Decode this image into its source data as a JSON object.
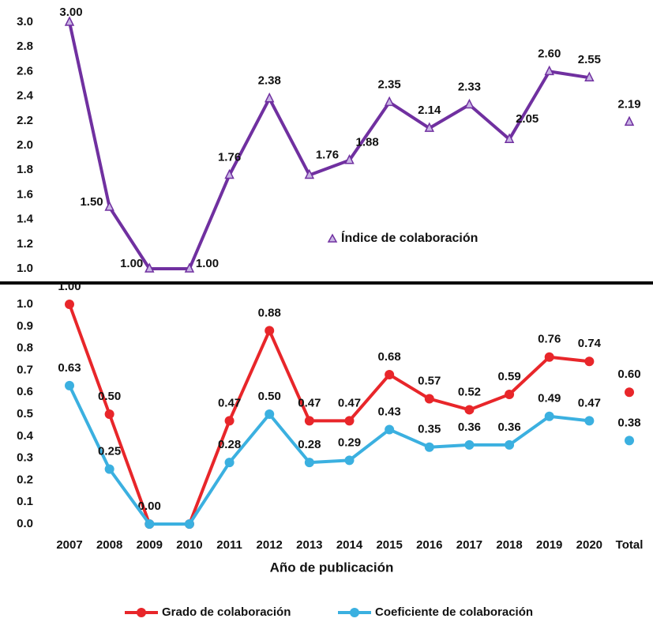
{
  "chart_data": [
    {
      "type": "line",
      "series": [
        {
          "name": "Índice de colaboración",
          "color": "#7030a0",
          "values": [
            3.0,
            1.5,
            1.0,
            1.0,
            1.76,
            2.38,
            1.76,
            1.88,
            2.35,
            2.14,
            2.33,
            2.05,
            2.6,
            2.55,
            2.19
          ],
          "value_labels": [
            "3.00",
            "1.50",
            "1.00",
            "1.00",
            "1.76",
            "2.38",
            "1.76",
            "1.88",
            "2.35",
            "2.14",
            "2.33",
            "2.05",
            "2.60",
            "2.55",
            "2.19"
          ]
        }
      ],
      "ylim": [
        1.0,
        3.0
      ],
      "yticks": [
        {
          "value": 1.0,
          "label": "1.0"
        },
        1.2,
        1.4,
        1.6,
        1.8,
        {
          "value": 2.0,
          "label": "2.0"
        },
        2.2,
        2.4,
        2.6,
        2.8,
        {
          "value": 3.0,
          "label": "3.0"
        }
      ]
    },
    {
      "type": "line",
      "x_label": "Año de publicación",
      "categories": [
        "2007",
        "2008",
        "2009",
        "2010",
        "2011",
        "2012",
        "2013",
        "2014",
        "2015",
        "2016",
        "2017",
        "2018",
        "2019",
        "2020",
        "Total"
      ],
      "series": [
        {
          "name": "Grado de colaboración",
          "color": "#e8262a",
          "values": [
            1.0,
            0.5,
            0.0,
            0.0,
            0.47,
            0.88,
            0.47,
            0.47,
            0.68,
            0.57,
            0.52,
            0.59,
            0.76,
            0.74,
            0.6
          ],
          "value_labels": [
            "1.00",
            "0.50",
            "0.00",
            null,
            "0.47",
            "0.88",
            "0.47",
            "0.47",
            "0.68",
            "0.57",
            "0.52",
            "0.59",
            "0.76",
            "0.74",
            "0.60"
          ]
        },
        {
          "name": "Coeficiente de colaboración",
          "color": "#3bb0e0",
          "values": [
            0.63,
            0.25,
            0.0,
            0.0,
            0.28,
            0.5,
            0.28,
            0.29,
            0.43,
            0.35,
            0.36,
            0.36,
            0.49,
            0.47,
            0.38
          ],
          "value_labels": [
            "0.63",
            "0.25",
            null,
            null,
            "0.28",
            "0.50",
            "0.28",
            "0.29",
            "0.43",
            "0.35",
            "0.36",
            "0.36",
            "0.49",
            "0.47",
            "0.38"
          ]
        }
      ],
      "ylim": [
        0.0,
        1.0
      ],
      "yticks": [
        {
          "value": 0.0,
          "label": "0.0"
        },
        0.1,
        0.2,
        0.3,
        0.4,
        0.5,
        0.6,
        0.7,
        0.8,
        0.9,
        {
          "value": 1.0,
          "label": "1.0"
        }
      ]
    }
  ]
}
